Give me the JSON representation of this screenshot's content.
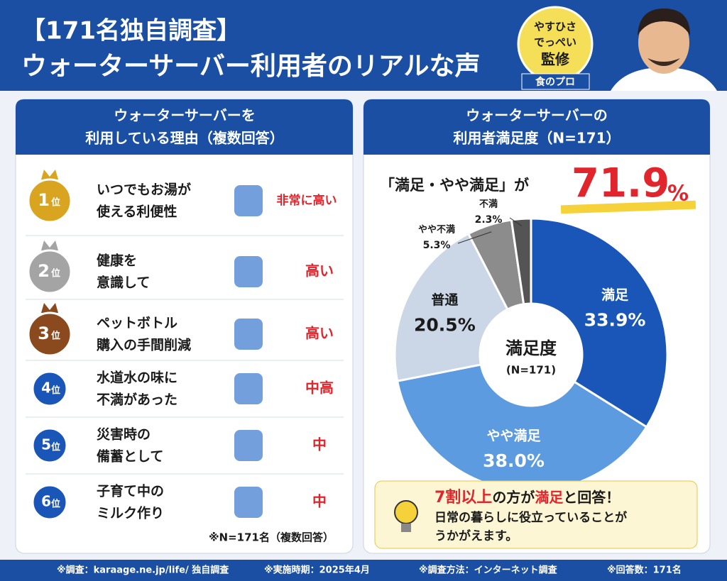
{
  "header": {
    "title_line1": "【171名独自調査】",
    "title_line2": "ウォーターサーバー利用者のリアルな声",
    "badge": [
      "やすひさ",
      "でっぺい",
      "監修"
    ],
    "badge_ribbon": "食のプロ"
  },
  "reasons": {
    "title_line1": "ウォーターサーバーを",
    "title_line2": "利用している理由（複数回答）",
    "rank_unit": "位",
    "items": [
      {
        "rank": 1,
        "text": [
          "いつでもお湯が",
          "使える利便性"
        ],
        "level": "非常に高い"
      },
      {
        "rank": 2,
        "text": [
          "健康を",
          "意識して"
        ],
        "level": "高い"
      },
      {
        "rank": 3,
        "text": [
          "ペットボトル",
          "購入の手間削減"
        ],
        "level": "高い"
      },
      {
        "rank": 4,
        "text": [
          "水道水の味に",
          "不満があった"
        ],
        "level": "中高"
      },
      {
        "rank": 5,
        "text": [
          "災害時の",
          "備蓄として"
        ],
        "level": "中"
      },
      {
        "rank": 6,
        "text": [
          "子育て中の",
          "ミルク作り"
        ],
        "level": "中"
      }
    ],
    "note": "※N=171名（複数回答）"
  },
  "chart_data": {
    "type": "donut",
    "title_line1": "ウォーターサーバーの",
    "title_line2": "利用者満足度（N=171）",
    "headline": "「満足・やや満足」が",
    "headline_value": 71.9,
    "headline_unit": "%",
    "center_title": "満足度",
    "center_sub": "(N=171)",
    "categories": [
      "満足",
      "やや満足",
      "普通",
      "やや不満",
      "不満"
    ],
    "values": [
      33.9,
      38.0,
      20.5,
      5.3,
      2.3
    ],
    "value_labels": [
      "33.9%",
      "38.0%",
      "20.5%",
      "5.3%",
      "2.3%"
    ],
    "colors": [
      "#1a56b8",
      "#5d9be0",
      "#cbd6e6",
      "#8c8c8c",
      "#545454"
    ]
  },
  "callout": {
    "line1": [
      "7割以上",
      "の方が",
      "満足",
      "と回答！"
    ],
    "line2": "日常の暮らしに役立っていることが",
    "line3": "うかがえます。"
  },
  "footer": [
    "※調査：karaage.ne.jp/life/ 独自調査",
    "※実施時期：2025年4月",
    "※調査方法：インターネット調査",
    "※回答数：171名"
  ]
}
